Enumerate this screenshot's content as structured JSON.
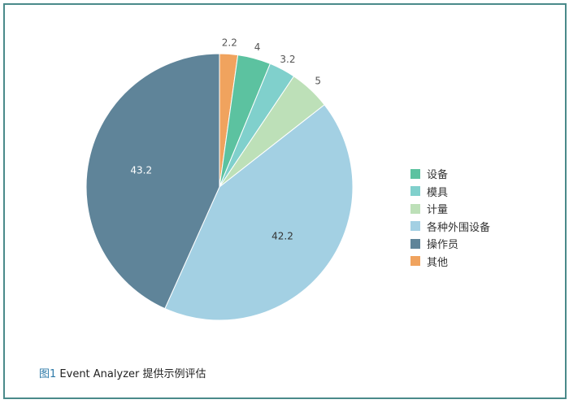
{
  "chart_data": {
    "type": "pie",
    "title": "",
    "slices": [
      {
        "name": "其他",
        "value": 2.2,
        "label": "2.2",
        "color": "#f0a35e"
      },
      {
        "name": "设备",
        "value": 4,
        "label": "4",
        "color": "#5cc2a0"
      },
      {
        "name": "模具",
        "value": 3.2,
        "label": "3.2",
        "color": "#80d0cc"
      },
      {
        "name": "计量",
        "value": 5,
        "label": "5",
        "color": "#bde0b8"
      },
      {
        "name": "各种外围设备",
        "value": 42.2,
        "label": "42.2",
        "color": "#a3d0e3"
      },
      {
        "name": "操作员",
        "value": 43.2,
        "label": "43.2",
        "color": "#5f8499"
      }
    ],
    "legend": [
      "设备",
      "模具",
      "计量",
      "各种外围设备",
      "操作员",
      "其他"
    ],
    "legend_position": "right"
  },
  "caption": {
    "figure_label": "图1",
    "text": " Event Analyzer 提供示例评估"
  }
}
